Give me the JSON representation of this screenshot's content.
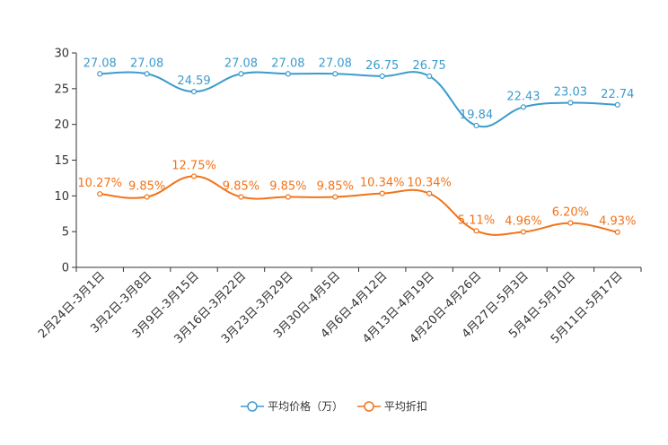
{
  "chart_data": {
    "type": "line",
    "title": "",
    "xlabel": "",
    "ylabel": "",
    "ylim": [
      0,
      30
    ],
    "yticks": [
      0,
      5,
      10,
      15,
      20,
      25,
      30
    ],
    "categories": [
      "2月24日-3月1日",
      "3月2日-3月8日",
      "3月9日-3月15日",
      "3月16日-3月22日",
      "3月23日-3月29日",
      "3月30日-4月5日",
      "4月6日-4月12日",
      "4月13日-4月19日",
      "4月20日-4月26日",
      "4月27日-5月3日",
      "5月4日-5月10日",
      "5月11日-5月17日"
    ],
    "series": [
      {
        "name": "平均价格（万）",
        "color": "#3b9ccd",
        "values": [
          27.08,
          27.08,
          24.59,
          27.08,
          27.08,
          27.08,
          26.75,
          26.75,
          19.84,
          22.43,
          23.03,
          22.74
        ],
        "labels": [
          "27.08",
          "27.08",
          "24.59",
          "27.08",
          "27.08",
          "27.08",
          "26.75",
          "26.75",
          "19.84",
          "22.43",
          "23.03",
          "22.74"
        ]
      },
      {
        "name": "平均折扣",
        "color": "#f27318",
        "values": [
          10.27,
          9.85,
          12.75,
          9.85,
          9.85,
          9.85,
          10.34,
          10.34,
          5.11,
          4.96,
          6.2,
          4.93
        ],
        "labels": [
          "10.27%",
          "9.85%",
          "12.75%",
          "9.85%",
          "9.85%",
          "9.85%",
          "10.34%",
          "10.34%",
          "5.11%",
          "4.96%",
          "6.20%",
          "4.93%"
        ]
      }
    ],
    "legend_position": "bottom-center"
  }
}
